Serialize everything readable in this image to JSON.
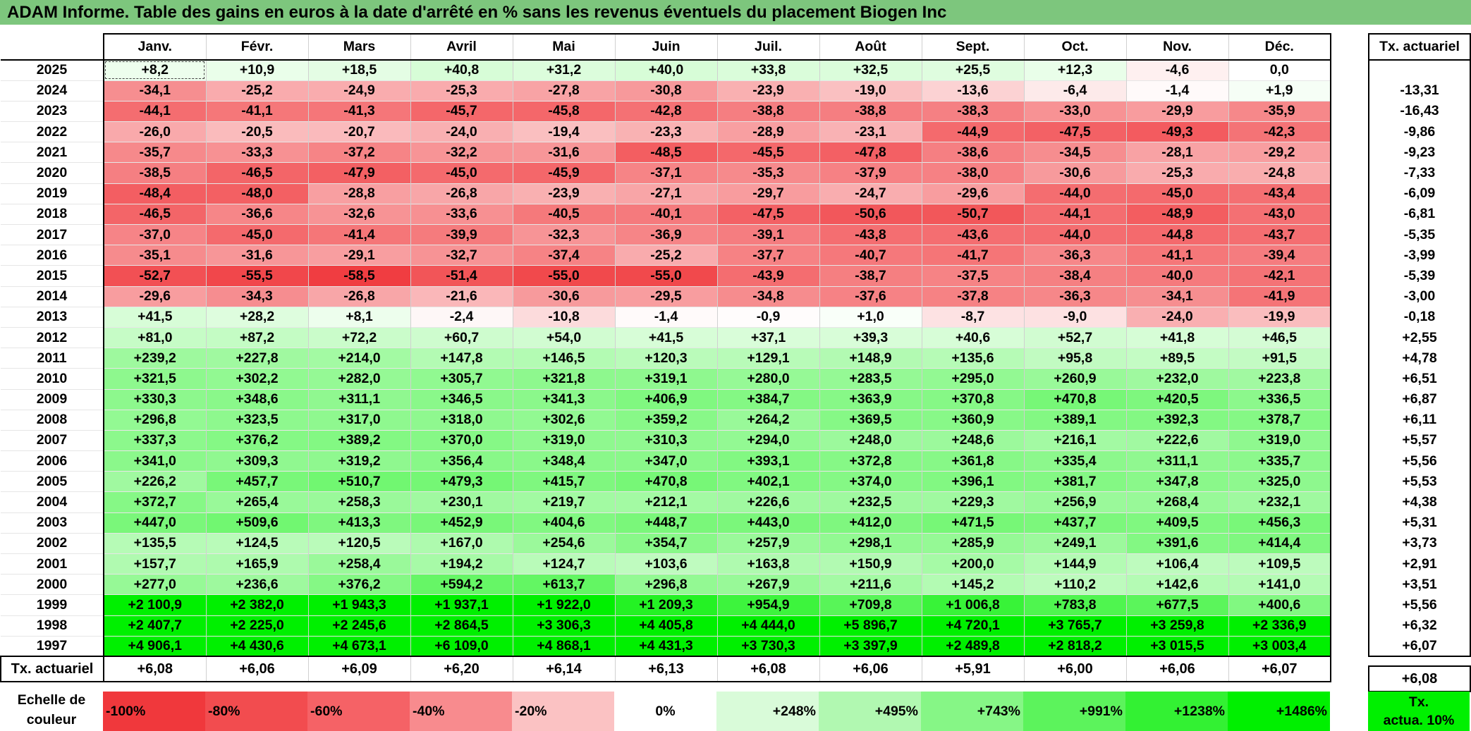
{
  "title": "ADAM Informe. Table des gains en euros à la date d'arrêté en % sans les revenus éventuels du placement Biogen Inc",
  "months": [
    "Janv.",
    "Févr.",
    "Mars",
    "Avril",
    "Mai",
    "Juin",
    "Juil.",
    "Août",
    "Sept.",
    "Oct.",
    "Nov.",
    "Déc."
  ],
  "rate_header": "Tx. actuariel",
  "rows": [
    {
      "year": "2025",
      "values": [
        "+8,2",
        "+10,9",
        "+18,5",
        "+40,8",
        "+31,2",
        "+40,0",
        "+33,8",
        "+32,5",
        "+25,5",
        "+12,3",
        "-4,6",
        "0,0"
      ],
      "rate": ""
    },
    {
      "year": "2024",
      "values": [
        "-34,1",
        "-25,2",
        "-24,9",
        "-25,3",
        "-27,8",
        "-30,8",
        "-23,9",
        "-19,0",
        "-13,6",
        "-6,4",
        "-1,4",
        "+1,9"
      ],
      "rate": "-13,31"
    },
    {
      "year": "2023",
      "values": [
        "-44,1",
        "-41,1",
        "-41,3",
        "-45,7",
        "-45,8",
        "-42,8",
        "-38,8",
        "-38,8",
        "-38,3",
        "-33,0",
        "-29,9",
        "-35,9"
      ],
      "rate": "-16,43"
    },
    {
      "year": "2022",
      "values": [
        "-26,0",
        "-20,5",
        "-20,7",
        "-24,0",
        "-19,4",
        "-23,3",
        "-28,9",
        "-23,1",
        "-44,9",
        "-47,5",
        "-49,3",
        "-42,3"
      ],
      "rate": "-9,86"
    },
    {
      "year": "2021",
      "values": [
        "-35,7",
        "-33,3",
        "-37,2",
        "-32,2",
        "-31,6",
        "-48,5",
        "-45,5",
        "-47,8",
        "-38,6",
        "-34,5",
        "-28,1",
        "-29,2"
      ],
      "rate": "-9,23"
    },
    {
      "year": "2020",
      "values": [
        "-38,5",
        "-46,5",
        "-47,9",
        "-45,0",
        "-45,9",
        "-37,1",
        "-35,3",
        "-37,9",
        "-38,0",
        "-30,6",
        "-25,3",
        "-24,8"
      ],
      "rate": "-7,33"
    },
    {
      "year": "2019",
      "values": [
        "-48,4",
        "-48,0",
        "-28,8",
        "-26,8",
        "-23,9",
        "-27,1",
        "-29,7",
        "-24,7",
        "-29,6",
        "-44,0",
        "-45,0",
        "-43,4"
      ],
      "rate": "-6,09"
    },
    {
      "year": "2018",
      "values": [
        "-46,5",
        "-36,6",
        "-32,6",
        "-33,6",
        "-40,5",
        "-40,1",
        "-47,5",
        "-50,6",
        "-50,7",
        "-44,1",
        "-48,9",
        "-43,0"
      ],
      "rate": "-6,81"
    },
    {
      "year": "2017",
      "values": [
        "-37,0",
        "-45,0",
        "-41,4",
        "-39,9",
        "-32,3",
        "-36,9",
        "-39,1",
        "-43,8",
        "-43,6",
        "-44,0",
        "-44,8",
        "-43,7"
      ],
      "rate": "-5,35"
    },
    {
      "year": "2016",
      "values": [
        "-35,1",
        "-31,6",
        "-29,1",
        "-32,7",
        "-37,4",
        "-25,2",
        "-37,7",
        "-40,7",
        "-41,7",
        "-36,3",
        "-41,1",
        "-39,4"
      ],
      "rate": "-3,99"
    },
    {
      "year": "2015",
      "values": [
        "-52,7",
        "-55,5",
        "-58,5",
        "-51,4",
        "-55,0",
        "-55,0",
        "-43,9",
        "-38,7",
        "-37,5",
        "-38,4",
        "-40,0",
        "-42,1"
      ],
      "rate": "-5,39"
    },
    {
      "year": "2014",
      "values": [
        "-29,6",
        "-34,3",
        "-26,8",
        "-21,6",
        "-30,6",
        "-29,5",
        "-34,8",
        "-37,6",
        "-37,8",
        "-36,3",
        "-34,1",
        "-41,9"
      ],
      "rate": "-3,00"
    },
    {
      "year": "2013",
      "values": [
        "+41,5",
        "+28,2",
        "+8,1",
        "-2,4",
        "-10,8",
        "-1,4",
        "-0,9",
        "+1,0",
        "-8,7",
        "-9,0",
        "-24,0",
        "-19,9"
      ],
      "rate": "-0,18"
    },
    {
      "year": "2012",
      "values": [
        "+81,0",
        "+87,2",
        "+72,2",
        "+60,7",
        "+54,0",
        "+41,5",
        "+37,1",
        "+39,3",
        "+40,6",
        "+52,7",
        "+41,8",
        "+46,5"
      ],
      "rate": "+2,55"
    },
    {
      "year": "2011",
      "values": [
        "+239,2",
        "+227,8",
        "+214,0",
        "+147,8",
        "+146,5",
        "+120,3",
        "+129,1",
        "+148,9",
        "+135,6",
        "+95,8",
        "+89,5",
        "+91,5"
      ],
      "rate": "+4,78"
    },
    {
      "year": "2010",
      "values": [
        "+321,5",
        "+302,2",
        "+282,0",
        "+305,7",
        "+321,8",
        "+319,1",
        "+280,0",
        "+283,5",
        "+295,0",
        "+260,9",
        "+232,0",
        "+223,8"
      ],
      "rate": "+6,51"
    },
    {
      "year": "2009",
      "values": [
        "+330,3",
        "+348,6",
        "+311,1",
        "+346,5",
        "+341,3",
        "+406,9",
        "+384,7",
        "+363,9",
        "+370,8",
        "+470,8",
        "+420,5",
        "+336,5"
      ],
      "rate": "+6,87"
    },
    {
      "year": "2008",
      "values": [
        "+296,8",
        "+323,5",
        "+317,0",
        "+318,0",
        "+302,6",
        "+359,2",
        "+264,2",
        "+369,5",
        "+360,9",
        "+389,1",
        "+392,3",
        "+378,7"
      ],
      "rate": "+6,11"
    },
    {
      "year": "2007",
      "values": [
        "+337,3",
        "+376,2",
        "+389,2",
        "+370,0",
        "+319,0",
        "+310,3",
        "+294,0",
        "+248,0",
        "+248,6",
        "+216,1",
        "+222,6",
        "+319,0"
      ],
      "rate": "+5,57"
    },
    {
      "year": "2006",
      "values": [
        "+341,0",
        "+309,3",
        "+319,2",
        "+356,4",
        "+348,4",
        "+347,0",
        "+393,1",
        "+372,8",
        "+361,8",
        "+335,4",
        "+311,1",
        "+335,7"
      ],
      "rate": "+5,56"
    },
    {
      "year": "2005",
      "values": [
        "+226,2",
        "+457,7",
        "+510,7",
        "+479,3",
        "+415,7",
        "+470,8",
        "+402,1",
        "+374,0",
        "+396,1",
        "+381,7",
        "+347,8",
        "+325,0"
      ],
      "rate": "+5,53"
    },
    {
      "year": "2004",
      "values": [
        "+372,7",
        "+265,4",
        "+258,3",
        "+230,1",
        "+219,7",
        "+212,1",
        "+226,6",
        "+232,5",
        "+229,3",
        "+256,9",
        "+268,4",
        "+232,1"
      ],
      "rate": "+4,38"
    },
    {
      "year": "2003",
      "values": [
        "+447,0",
        "+509,6",
        "+413,3",
        "+452,9",
        "+404,6",
        "+448,7",
        "+443,0",
        "+412,0",
        "+471,5",
        "+437,7",
        "+409,5",
        "+456,3"
      ],
      "rate": "+5,31"
    },
    {
      "year": "2002",
      "values": [
        "+135,5",
        "+124,5",
        "+120,5",
        "+167,0",
        "+254,6",
        "+354,7",
        "+257,9",
        "+298,1",
        "+285,9",
        "+249,1",
        "+391,6",
        "+414,4"
      ],
      "rate": "+3,73"
    },
    {
      "year": "2001",
      "values": [
        "+157,7",
        "+165,9",
        "+258,4",
        "+194,2",
        "+124,7",
        "+103,6",
        "+163,8",
        "+150,9",
        "+200,0",
        "+144,9",
        "+106,4",
        "+109,5"
      ],
      "rate": "+2,91"
    },
    {
      "year": "2000",
      "values": [
        "+277,0",
        "+236,6",
        "+376,2",
        "+594,2",
        "+613,7",
        "+296,8",
        "+267,9",
        "+211,6",
        "+145,2",
        "+110,2",
        "+142,6",
        "+141,0"
      ],
      "rate": "+3,51"
    },
    {
      "year": "1999",
      "values": [
        "+2 100,9",
        "+2 382,0",
        "+1 943,3",
        "+1 937,1",
        "+1 922,0",
        "+1 209,3",
        "+954,9",
        "+709,8",
        "+1 006,8",
        "+783,8",
        "+677,5",
        "+400,6"
      ],
      "rate": "+5,56"
    },
    {
      "year": "1998",
      "values": [
        "+2 407,7",
        "+2 225,0",
        "+2 245,6",
        "+2 864,5",
        "+3 306,3",
        "+4 405,8",
        "+4 444,0",
        "+5 896,7",
        "+4 720,1",
        "+3 765,7",
        "+3 259,8",
        "+2 336,9"
      ],
      "rate": "+6,32"
    },
    {
      "year": "1997",
      "values": [
        "+4 906,1",
        "+4 430,6",
        "+4 673,1",
        "+6 109,0",
        "+4 868,1",
        "+4 431,3",
        "+3 730,3",
        "+3 397,9",
        "+2 489,8",
        "+2 818,2",
        "+3 015,5",
        "+3 003,4"
      ],
      "rate": "+6,07"
    }
  ],
  "tx_row_label": "Tx. actuariel",
  "tx_row_values": [
    "+6,08",
    "+6,06",
    "+6,09",
    "+6,20",
    "+6,14",
    "+6,13",
    "+6,08",
    "+6,06",
    "+5,91",
    "+6,00",
    "+6,06",
    "+6,07"
  ],
  "tx_overall": "+6,08",
  "scale_label_line1": "Echelle de",
  "scale_label_line2": "couleur",
  "scale": [
    {
      "label": "-100%",
      "color": "#f0383c",
      "align": "left"
    },
    {
      "label": "-80%",
      "color": "#f24c4f",
      "align": "left"
    },
    {
      "label": "-60%",
      "color": "#f56266",
      "align": "left"
    },
    {
      "label": "-40%",
      "color": "#f88b8e",
      "align": "left"
    },
    {
      "label": "-20%",
      "color": "#fbc2c3",
      "align": "left"
    },
    {
      "label": "0%",
      "color": "#ffffff",
      "align": "center"
    },
    {
      "label": "+248%",
      "color": "#d9fbd9",
      "align": "right"
    },
    {
      "label": "+495%",
      "color": "#b1f8b1",
      "align": "right"
    },
    {
      "label": "+743%",
      "color": "#86f686",
      "align": "right"
    },
    {
      "label": "+991%",
      "color": "#5cf35c",
      "align": "right"
    },
    {
      "label": "+1238%",
      "color": "#33f133",
      "align": "right"
    },
    {
      "label": "+1486%",
      "color": "#00f000",
      "align": "right"
    }
  ],
  "scale_tx_line1": "Tx.",
  "scale_tx_line2": "actua. 10%",
  "colors": {
    "title_bg": "#7dc67d",
    "neg_max": "#f0383c",
    "pos_max": "#00f000",
    "neutral": "#ffffff"
  }
}
